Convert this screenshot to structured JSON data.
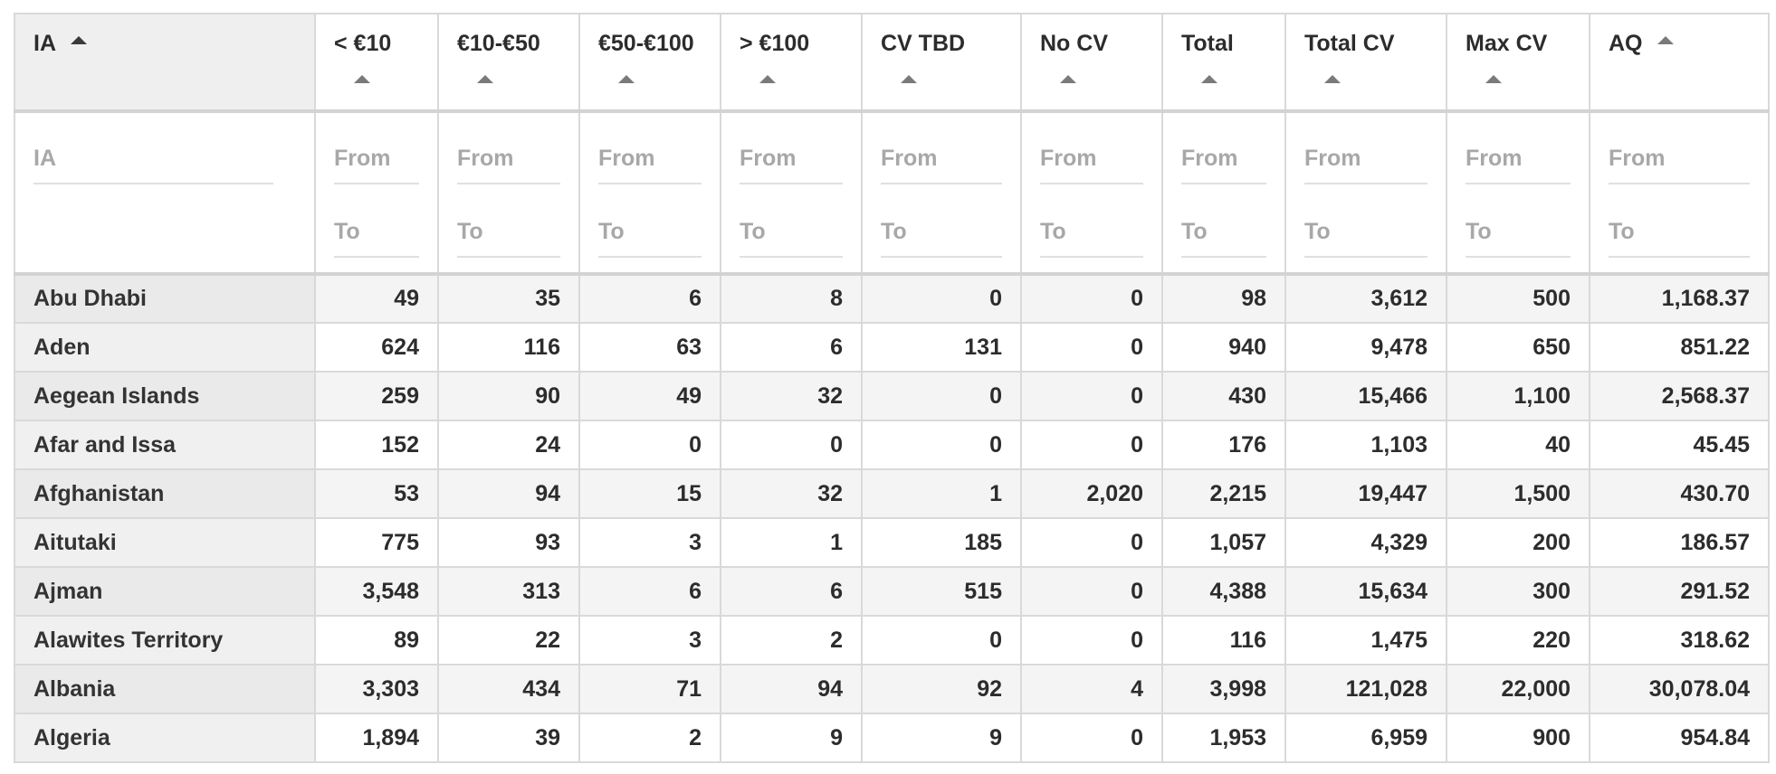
{
  "columns": [
    {
      "label": "IA",
      "filter": {
        "placeholder": "IA"
      }
    },
    {
      "label": "< €10",
      "filter": {
        "from": "From",
        "to": "To"
      }
    },
    {
      "label": "€10-€50",
      "filter": {
        "from": "From",
        "to": "To"
      }
    },
    {
      "label": "€50-€100",
      "filter": {
        "from": "From",
        "to": "To"
      }
    },
    {
      "label": "> €100",
      "filter": {
        "from": "From",
        "to": "To"
      }
    },
    {
      "label": "CV TBD",
      "filter": {
        "from": "From",
        "to": "To"
      }
    },
    {
      "label": "No CV",
      "filter": {
        "from": "From",
        "to": "To"
      }
    },
    {
      "label": "Total",
      "filter": {
        "from": "From",
        "to": "To"
      }
    },
    {
      "label": "Total CV",
      "filter": {
        "from": "From",
        "to": "To"
      }
    },
    {
      "label": "Max CV",
      "filter": {
        "from": "From",
        "to": "To"
      }
    },
    {
      "label": "AQ",
      "filter": {
        "from": "From",
        "to": "To"
      }
    }
  ],
  "rows": [
    [
      "Abu Dhabi",
      "49",
      "35",
      "6",
      "8",
      "0",
      "0",
      "98",
      "3,612",
      "500",
      "1,168.37"
    ],
    [
      "Aden",
      "624",
      "116",
      "63",
      "6",
      "131",
      "0",
      "940",
      "9,478",
      "650",
      "851.22"
    ],
    [
      "Aegean Islands",
      "259",
      "90",
      "49",
      "32",
      "0",
      "0",
      "430",
      "15,466",
      "1,100",
      "2,568.37"
    ],
    [
      "Afar and Issa",
      "152",
      "24",
      "0",
      "0",
      "0",
      "0",
      "176",
      "1,103",
      "40",
      "45.45"
    ],
    [
      "Afghanistan",
      "53",
      "94",
      "15",
      "32",
      "1",
      "2,020",
      "2,215",
      "19,447",
      "1,500",
      "430.70"
    ],
    [
      "Aitutaki",
      "775",
      "93",
      "3",
      "1",
      "185",
      "0",
      "1,057",
      "4,329",
      "200",
      "186.57"
    ],
    [
      "Ajman",
      "3,548",
      "313",
      "6",
      "6",
      "515",
      "0",
      "4,388",
      "15,634",
      "300",
      "291.52"
    ],
    [
      "Alawites Territory",
      "89",
      "22",
      "3",
      "2",
      "0",
      "0",
      "116",
      "1,475",
      "220",
      "318.62"
    ],
    [
      "Albania",
      "3,303",
      "434",
      "71",
      "94",
      "92",
      "4",
      "3,998",
      "121,028",
      "22,000",
      "30,078.04"
    ],
    [
      "Algeria",
      "1,894",
      "39",
      "2",
      "9",
      "9",
      "0",
      "1,953",
      "6,959",
      "900",
      "954.84"
    ]
  ],
  "sort": {
    "column": "IA",
    "direction": "ascending"
  }
}
